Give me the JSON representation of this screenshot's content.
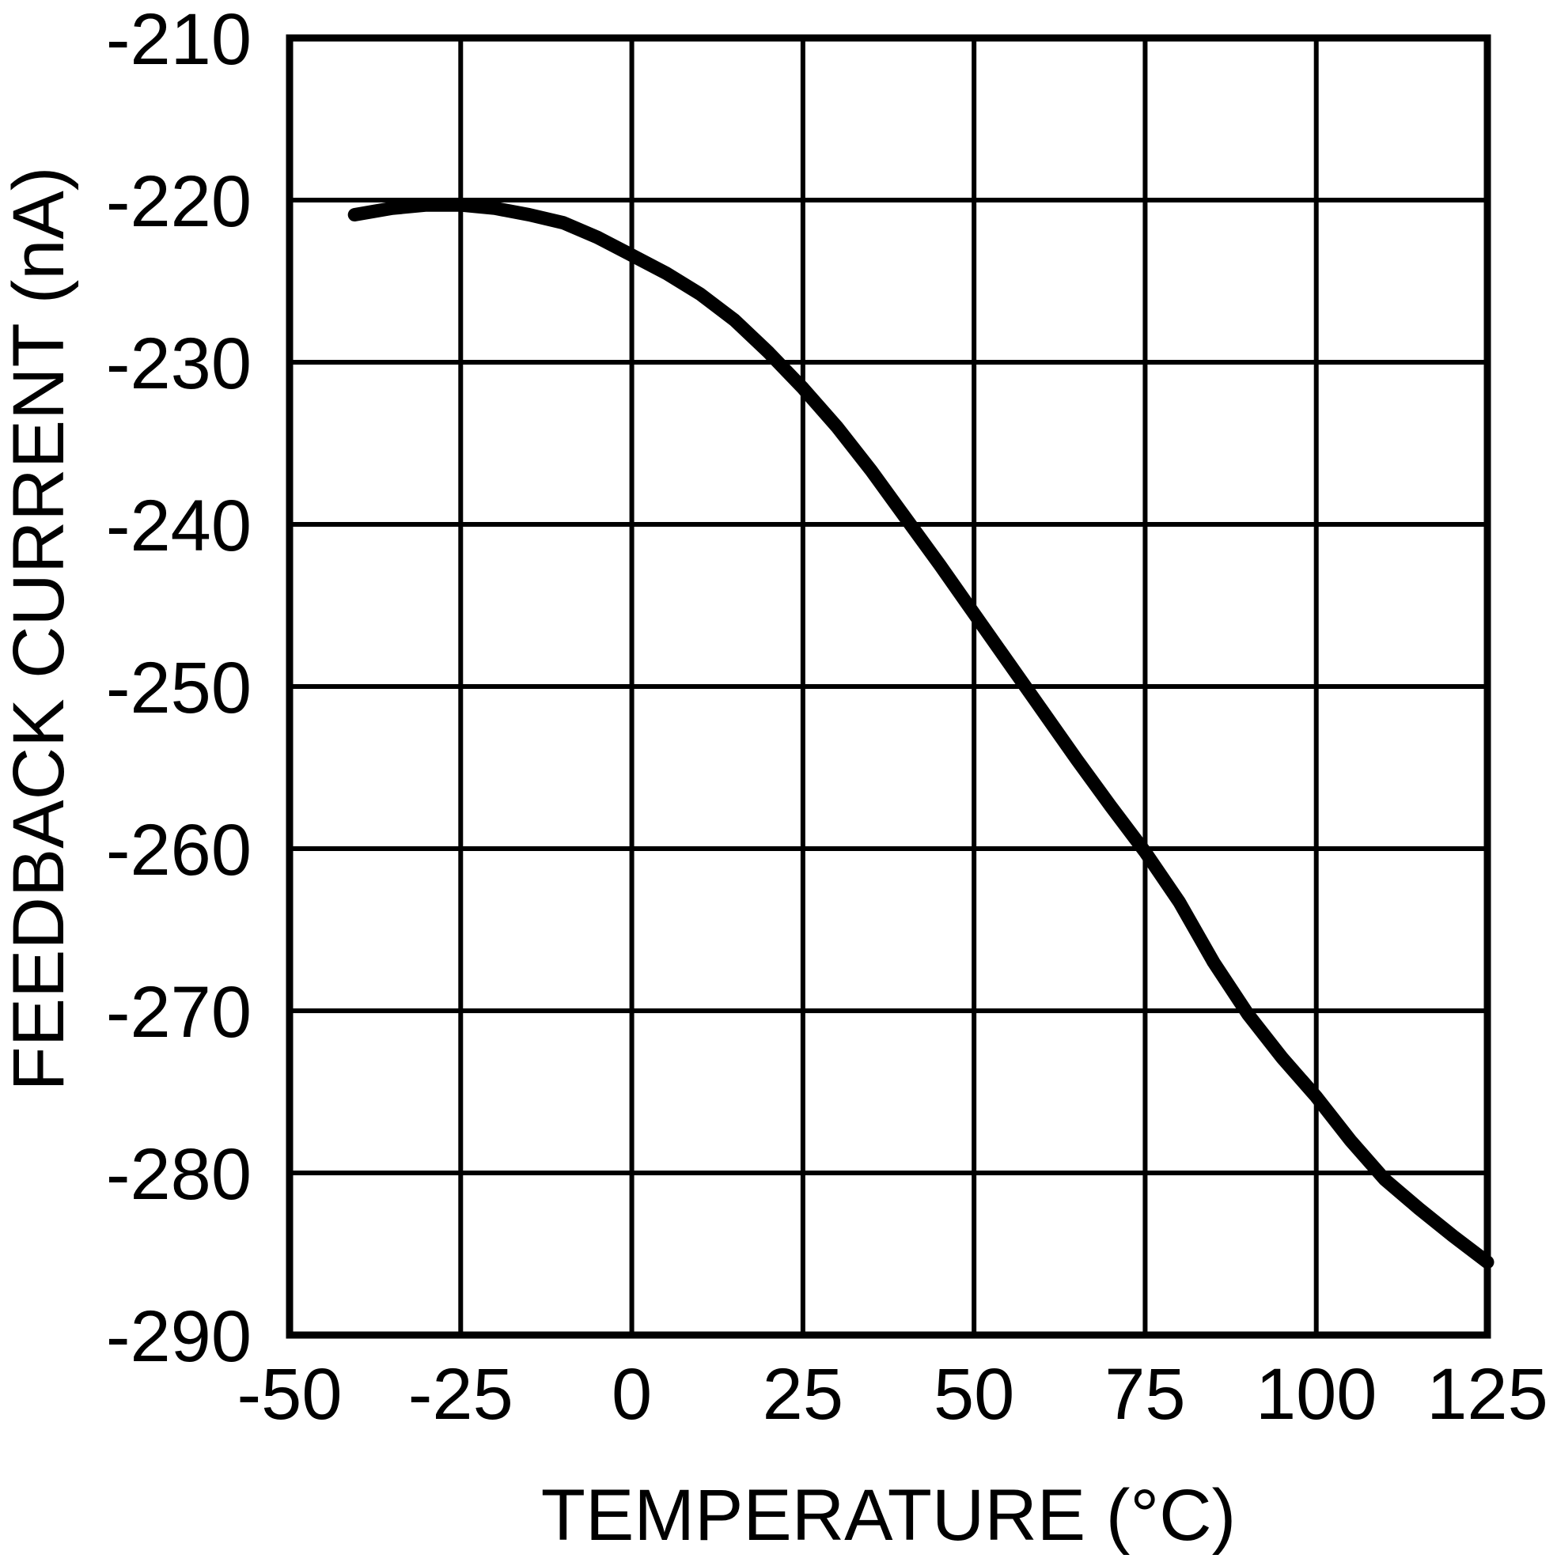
{
  "chart_data": {
    "type": "line",
    "title": "",
    "xlabel": "TEMPERATURE (°C)",
    "ylabel": "FEEDBACK CURRENT (nA)",
    "xlim": [
      -50,
      125
    ],
    "ylim": [
      -290,
      -210
    ],
    "x_ticks": [
      -50,
      -25,
      0,
      25,
      50,
      75,
      100,
      125
    ],
    "x_tick_labels": [
      "-50",
      "-25",
      "0",
      "25",
      "50",
      "75",
      "100",
      "125"
    ],
    "y_ticks": [
      -290,
      -280,
      -270,
      -260,
      -250,
      -240,
      -230,
      -220,
      -210
    ],
    "y_tick_labels": [
      "-290",
      "-280",
      "-270",
      "-260",
      "-250",
      "-240",
      "-230",
      "-220",
      "-210"
    ],
    "grid": true,
    "legend": "none",
    "colors": {
      "line": "#000000",
      "grid": "#000000",
      "frame": "#000000",
      "text": "#000000",
      "background": "#ffffff"
    },
    "series": [
      {
        "name": "feedback-current",
        "x": [
          -40.5,
          -35,
          -30,
          -25,
          -20,
          -15,
          -10,
          -5,
          0,
          5,
          10,
          15,
          20,
          25,
          30,
          35,
          40,
          45,
          50,
          55,
          60,
          65,
          70,
          75,
          80,
          85,
          90,
          95,
          100,
          105,
          110,
          115,
          120,
          125
        ],
        "y": [
          -220.9,
          -220.5,
          -220.3,
          -220.3,
          -220.5,
          -220.9,
          -221.4,
          -222.3,
          -223.4,
          -224.5,
          -225.8,
          -227.4,
          -229.4,
          -231.6,
          -234.0,
          -236.7,
          -239.6,
          -242.5,
          -245.5,
          -248.5,
          -251.5,
          -254.5,
          -257.4,
          -260.2,
          -263.3,
          -267.0,
          -270.2,
          -272.9,
          -275.3,
          -278.0,
          -280.4,
          -282.2,
          -283.9,
          -285.5
        ]
      }
    ]
  }
}
